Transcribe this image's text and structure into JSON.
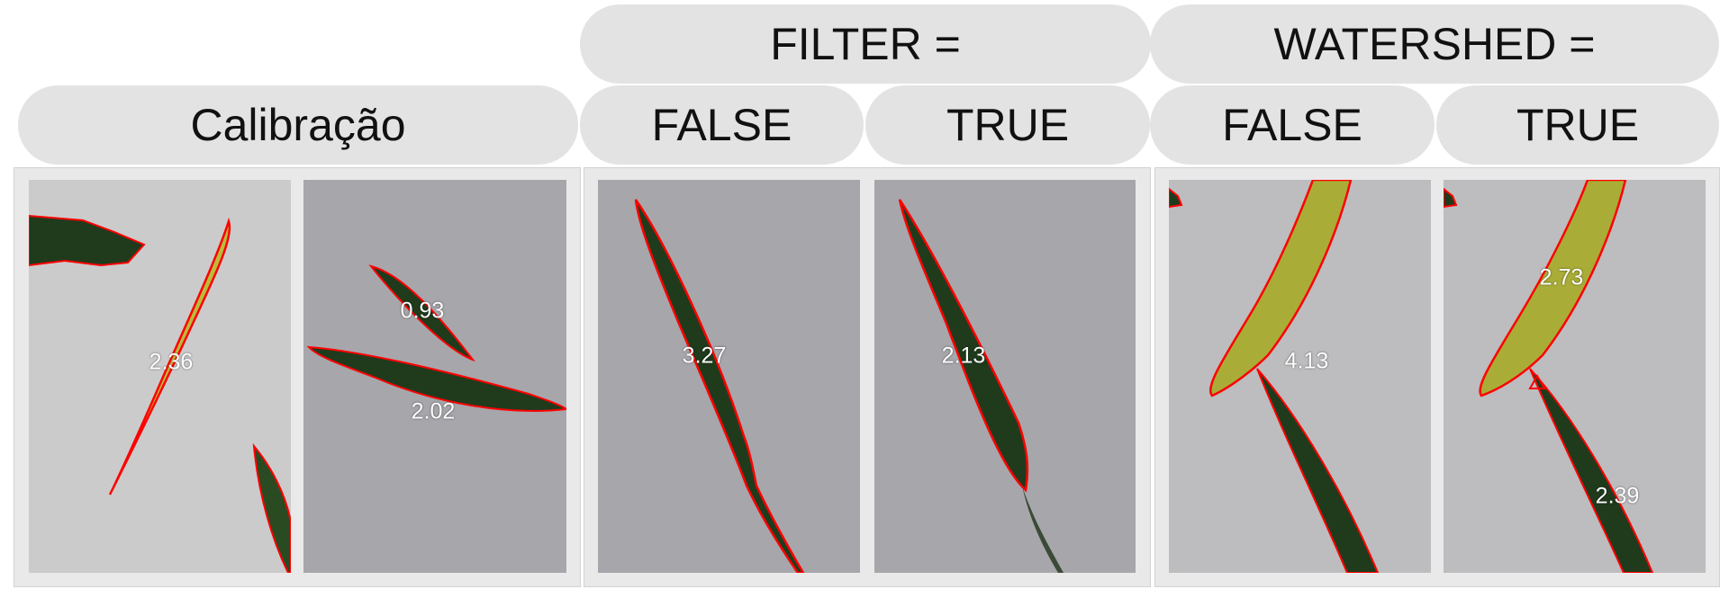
{
  "headers": {
    "calibration": "Calibração",
    "filter": "FILTER =",
    "watershed": "WATERSHED =",
    "filter_false": "FALSE",
    "filter_true": "TRUE",
    "watershed_false": "FALSE",
    "watershed_true": "TRUE"
  },
  "panels": {
    "calib1": {
      "labels": [
        "2.36"
      ]
    },
    "calib2": {
      "labels": [
        "0.93",
        "2.02"
      ]
    },
    "filter_false": {
      "labels": [
        "3.27"
      ]
    },
    "filter_true": {
      "labels": [
        "2.13"
      ]
    },
    "watershed_false": {
      "labels": [
        "4.13"
      ]
    },
    "watershed_true": {
      "labels": [
        "2.73",
        "2.39"
      ]
    }
  },
  "colors": {
    "header_bg": "#e3e3e3",
    "background_panel": "#a7a6ab",
    "leaf_dark": "#1f3b1c",
    "leaf_yellow": "#b9bc3c",
    "outline": "#ff0000"
  }
}
